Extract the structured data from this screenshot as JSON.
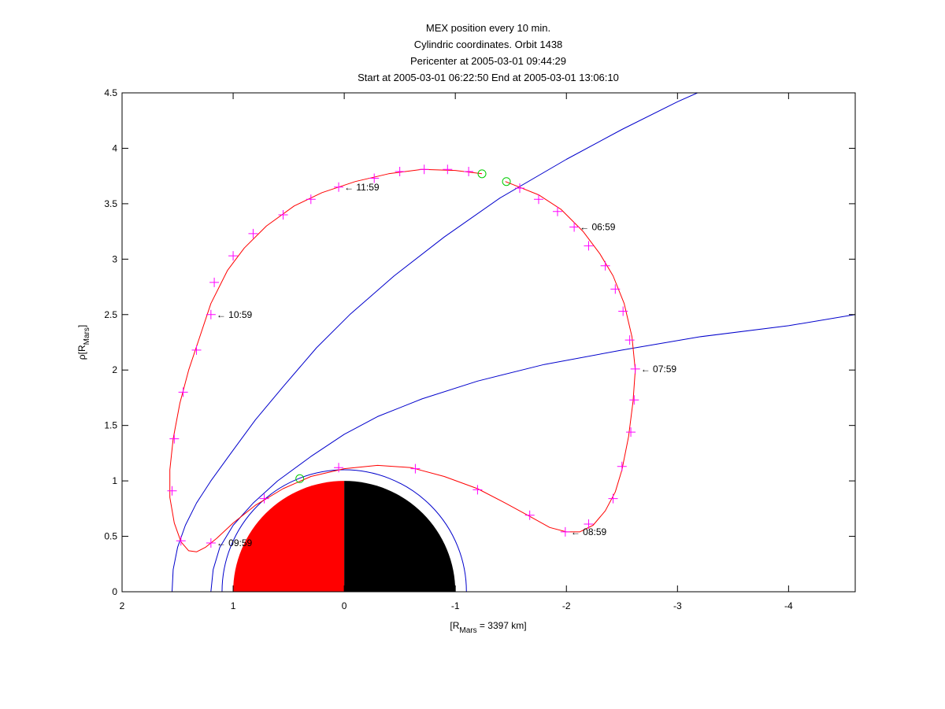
{
  "chart_data": {
    "type": "line",
    "title_lines": [
      "MEX position every 10 min.",
      "Cylindric coordinates. Orbit 1438",
      "Pericenter at 2005-03-01 09:44:29",
      "Start at 2005-03-01 06:22:50 End at 2005-03-01 13:06:10"
    ],
    "xlabel": {
      "main": "[R",
      "sub": "Mars",
      "rest": " = 3397 km]"
    },
    "ylabel": {
      "main": "ρ[R",
      "sub": "Mars",
      "rest": "]"
    },
    "xlim": [
      2,
      -4.6
    ],
    "ylim": [
      0,
      4.5
    ],
    "xticks": [
      2,
      1,
      0,
      -1,
      -2,
      -3,
      -4
    ],
    "xtick_labels": [
      "2",
      "1",
      "0",
      "-1",
      "-2",
      "-3",
      "-4"
    ],
    "yticks": [
      0,
      0.5,
      1,
      1.5,
      2,
      2.5,
      3,
      3.5,
      4,
      4.5
    ],
    "ytick_labels": [
      "0",
      "0.5",
      "1",
      "1.5",
      "2",
      "2.5",
      "3",
      "3.5",
      "4",
      "4.5"
    ],
    "orbit": [
      [
        -1.24,
        3.77
      ],
      [
        -1.0,
        3.8
      ],
      [
        -0.7,
        3.81
      ],
      [
        -0.4,
        3.77
      ],
      [
        -0.1,
        3.7
      ],
      [
        0.2,
        3.6
      ],
      [
        0.45,
        3.48
      ],
      [
        0.7,
        3.3
      ],
      [
        0.9,
        3.1
      ],
      [
        1.05,
        2.9
      ],
      [
        1.2,
        2.6
      ],
      [
        1.3,
        2.3
      ],
      [
        1.4,
        2.0
      ],
      [
        1.48,
        1.7
      ],
      [
        1.54,
        1.38
      ],
      [
        1.57,
        1.1
      ],
      [
        1.57,
        0.85
      ],
      [
        1.53,
        0.62
      ],
      [
        1.47,
        0.45
      ],
      [
        1.4,
        0.37
      ],
      [
        1.33,
        0.36
      ],
      [
        1.25,
        0.4
      ],
      [
        1.15,
        0.48
      ],
      [
        1.0,
        0.62
      ],
      [
        0.8,
        0.78
      ],
      [
        0.55,
        0.93
      ],
      [
        0.3,
        1.04
      ],
      [
        0.0,
        1.11
      ],
      [
        -0.3,
        1.14
      ],
      [
        -0.6,
        1.12
      ],
      [
        -0.9,
        1.04
      ],
      [
        -1.2,
        0.93
      ],
      [
        -1.45,
        0.8
      ],
      [
        -1.67,
        0.68
      ],
      [
        -1.85,
        0.58
      ],
      [
        -2.0,
        0.54
      ],
      [
        -2.12,
        0.54
      ],
      [
        -2.24,
        0.6
      ],
      [
        -2.35,
        0.73
      ],
      [
        -2.44,
        0.9
      ],
      [
        -2.5,
        1.1
      ],
      [
        -2.56,
        1.4
      ],
      [
        -2.6,
        1.72
      ],
      [
        -2.62,
        2.0
      ],
      [
        -2.59,
        2.3
      ],
      [
        -2.52,
        2.6
      ],
      [
        -2.42,
        2.85
      ],
      [
        -2.3,
        3.05
      ],
      [
        -2.15,
        3.25
      ],
      [
        -1.95,
        3.45
      ],
      [
        -1.75,
        3.58
      ],
      [
        -1.55,
        3.66
      ],
      [
        -1.45,
        3.7
      ]
    ],
    "markers_10min": [
      [
        -0.93,
        3.81
      ],
      [
        -0.72,
        3.81
      ],
      [
        -0.5,
        3.79
      ],
      [
        -0.27,
        3.73
      ],
      [
        0.05,
        3.65
      ],
      [
        0.3,
        3.54
      ],
      [
        0.55,
        3.4
      ],
      [
        0.82,
        3.23
      ],
      [
        1.0,
        3.03
      ],
      [
        1.17,
        2.79
      ],
      [
        1.2,
        2.5
      ],
      [
        1.33,
        2.18
      ],
      [
        1.45,
        1.8
      ],
      [
        1.53,
        1.38
      ],
      [
        1.55,
        0.91
      ],
      [
        1.47,
        0.46
      ],
      [
        1.2,
        0.44
      ],
      [
        0.72,
        0.84
      ],
      [
        0.05,
        1.12
      ],
      [
        -0.64,
        1.11
      ],
      [
        -1.2,
        0.92
      ],
      [
        -1.67,
        0.69
      ],
      [
        -1.99,
        0.54
      ],
      [
        -2.2,
        0.61
      ],
      [
        -2.42,
        0.84
      ],
      [
        -2.5,
        1.13
      ],
      [
        -2.58,
        1.44
      ],
      [
        -2.61,
        1.73
      ],
      [
        -2.62,
        2.01
      ],
      [
        -2.57,
        2.27
      ],
      [
        -2.51,
        2.53
      ],
      [
        -2.44,
        2.73
      ],
      [
        -2.35,
        2.94
      ],
      [
        -2.2,
        3.12
      ],
      [
        -2.07,
        3.29
      ],
      [
        -1.92,
        3.43
      ],
      [
        -1.75,
        3.54
      ],
      [
        -1.58,
        3.64
      ],
      [
        -1.12,
        3.79
      ]
    ],
    "circle_markers": [
      [
        -1.24,
        3.77
      ],
      [
        -1.46,
        3.7
      ],
      [
        0.4,
        1.02
      ]
    ],
    "time_labels": [
      {
        "x": 0.05,
        "y": 3.65,
        "text": "← 11:59"
      },
      {
        "x": -2.07,
        "y": 3.29,
        "text": "← 06:59"
      },
      {
        "x": 1.2,
        "y": 2.5,
        "text": "← 10:59"
      },
      {
        "x": -2.62,
        "y": 2.01,
        "text": "← 07:59"
      },
      {
        "x": 1.2,
        "y": 0.44,
        "text": "← 09:59"
      },
      {
        "x": -1.99,
        "y": 0.54,
        "text": "← 08:59"
      }
    ],
    "bow_shock": [
      [
        1.55,
        0.0
      ],
      [
        1.54,
        0.2
      ],
      [
        1.5,
        0.4
      ],
      [
        1.43,
        0.6
      ],
      [
        1.33,
        0.8
      ],
      [
        1.2,
        1.0
      ],
      [
        1.02,
        1.25
      ],
      [
        0.8,
        1.55
      ],
      [
        0.55,
        1.85
      ],
      [
        0.25,
        2.2
      ],
      [
        -0.05,
        2.5
      ],
      [
        -0.45,
        2.85
      ],
      [
        -0.9,
        3.2
      ],
      [
        -1.4,
        3.55
      ],
      [
        -2.0,
        3.9
      ],
      [
        -2.5,
        4.17
      ],
      [
        -3.0,
        4.42
      ],
      [
        -3.18,
        4.5
      ]
    ],
    "mpb": [
      [
        1.2,
        0.0
      ],
      [
        1.18,
        0.2
      ],
      [
        1.12,
        0.4
      ],
      [
        1.0,
        0.6
      ],
      [
        0.82,
        0.8
      ],
      [
        0.6,
        1.0
      ],
      [
        0.3,
        1.22
      ],
      [
        0.0,
        1.42
      ],
      [
        -0.3,
        1.58
      ],
      [
        -0.7,
        1.74
      ],
      [
        -1.2,
        1.9
      ],
      [
        -1.8,
        2.05
      ],
      [
        -2.5,
        2.18
      ],
      [
        -3.2,
        2.3
      ],
      [
        -4.0,
        2.4
      ],
      [
        -4.6,
        2.5
      ]
    ],
    "mars_radius": 1.0,
    "outer_ring_radius": 1.1,
    "colors": {
      "orbit": "#ff0000",
      "markers": "#ff00ff",
      "circles": "#00cc00",
      "boundaries": "#0000cc",
      "mars_day": "#ff0000",
      "mars_night": "#000000"
    }
  }
}
